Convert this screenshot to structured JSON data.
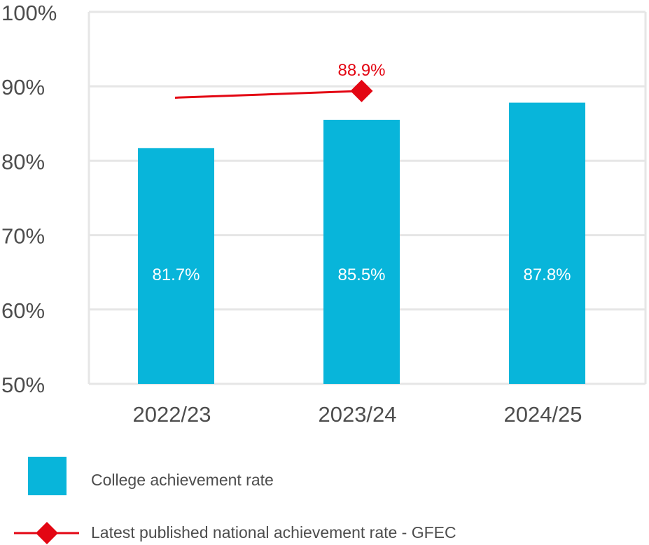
{
  "chart_data": {
    "type": "bar",
    "title": "",
    "xlabel": "",
    "ylabel": "",
    "ylim": [
      50,
      100
    ],
    "yticks": [
      "50%",
      "60%",
      "70%",
      "80%",
      "90%",
      "100%"
    ],
    "ytick_values": [
      50,
      60,
      70,
      80,
      90,
      100
    ],
    "grid": true,
    "categories": [
      "2022/23",
      "2023/24",
      "2024/25"
    ],
    "series": [
      {
        "name": "College achievement rate",
        "type": "bar",
        "color": "#08b5da",
        "values": [
          81.7,
          85.5,
          87.8
        ],
        "labels": [
          "81.7%",
          "85.5%",
          "87.8%"
        ]
      },
      {
        "name": "Latest published national achievement rate - GFEC",
        "type": "line",
        "color": "#e30613",
        "values": [
          88.0,
          88.9,
          null
        ],
        "labels": [
          null,
          "88.9%",
          null
        ]
      }
    ],
    "legend_position": "bottom-left"
  },
  "legend": {
    "items": [
      {
        "label": "College achievement rate",
        "swatch": "bar",
        "color": "#08b5da"
      },
      {
        "label": "Latest published national achievement rate - GFEC",
        "swatch": "line-diamond",
        "color": "#e30613"
      }
    ]
  },
  "colors": {
    "bar": "#08b5da",
    "line": "#e30613",
    "grid": "#e6e6e6",
    "text": "#4d4d4d"
  }
}
